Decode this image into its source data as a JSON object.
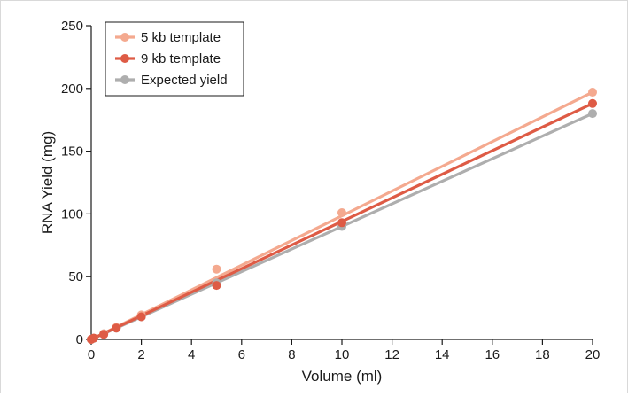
{
  "chart_data": {
    "type": "line",
    "title": "",
    "xlabel": "Volume (ml)",
    "ylabel": "RNA Yield (mg)",
    "xlim": [
      0,
      20
    ],
    "ylim": [
      0,
      250
    ],
    "x_ticks": [
      0,
      2,
      4,
      6,
      8,
      10,
      12,
      14,
      16,
      18,
      20
    ],
    "y_ticks": [
      0,
      50,
      100,
      150,
      200,
      250
    ],
    "grid": false,
    "legend_position": "top-left",
    "series": [
      {
        "name": "5 kb template",
        "color": "#f4a98f",
        "fit_line": [
          [
            0,
            0
          ],
          [
            20,
            197
          ]
        ],
        "points": [
          [
            0,
            0
          ],
          [
            0.1,
            1
          ],
          [
            0.5,
            4.5
          ],
          [
            1,
            9.5
          ],
          [
            2,
            19.5
          ],
          [
            5,
            56
          ],
          [
            10,
            101
          ],
          [
            20,
            197
          ]
        ]
      },
      {
        "name": "9 kb template",
        "color": "#de5b45",
        "fit_line": [
          [
            0,
            0
          ],
          [
            20,
            188
          ]
        ],
        "points": [
          [
            0,
            0
          ],
          [
            0.1,
            1
          ],
          [
            0.5,
            4
          ],
          [
            1,
            9
          ],
          [
            2,
            18
          ],
          [
            5,
            43
          ],
          [
            10,
            93
          ],
          [
            20,
            188
          ]
        ]
      },
      {
        "name": "Expected yield",
        "color": "#aeaeae",
        "fit_line": [
          [
            0,
            0
          ],
          [
            20,
            180
          ]
        ],
        "points": [
          [
            0,
            0
          ],
          [
            0.1,
            0.9
          ],
          [
            0.5,
            4.5
          ],
          [
            1,
            9
          ],
          [
            2,
            18
          ],
          [
            5,
            45
          ],
          [
            10,
            90
          ],
          [
            20,
            180
          ]
        ]
      }
    ]
  }
}
